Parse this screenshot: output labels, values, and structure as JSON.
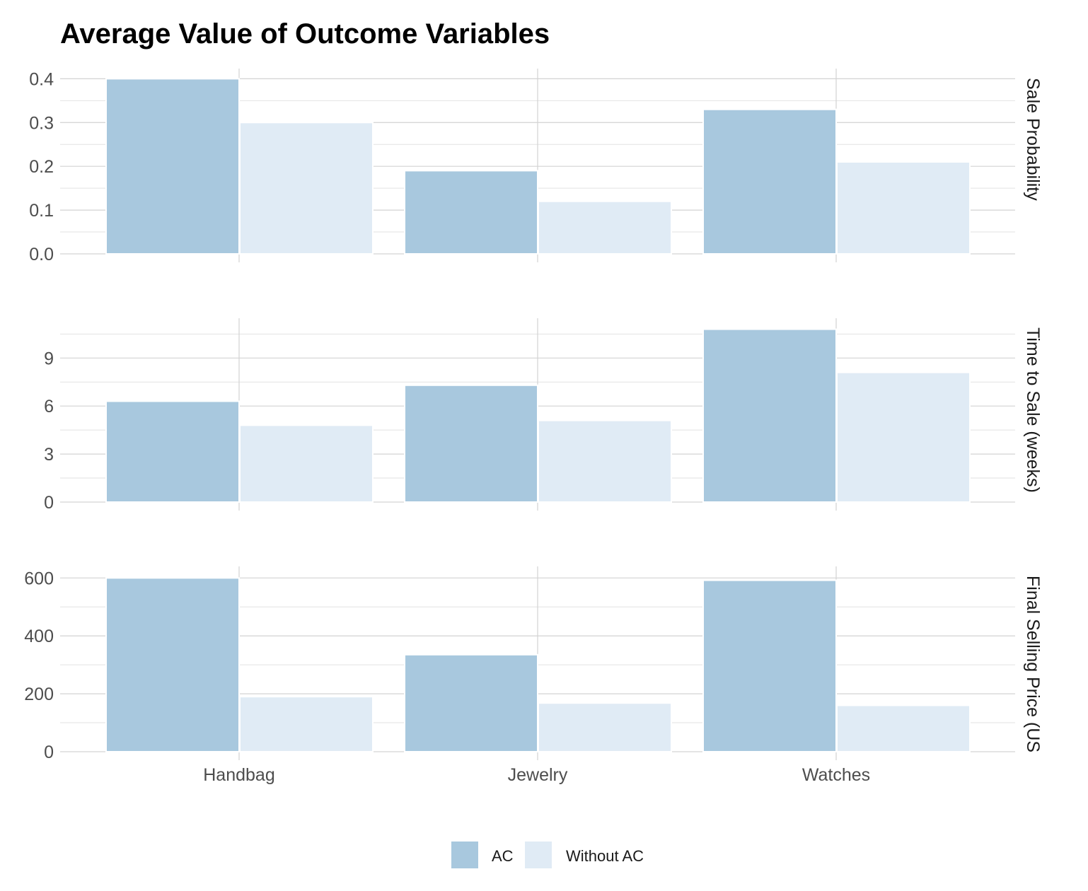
{
  "chart_data": {
    "type": "bar",
    "title": "Average Value of Outcome Variables",
    "categories": [
      "Handbag",
      "Jewelry",
      "Watches"
    ],
    "legend": {
      "position": "bottom",
      "entries": [
        "AC",
        "Without AC"
      ]
    },
    "colors": {
      "AC": "#a8c8de",
      "Without AC": "#e0ebf5"
    },
    "grid": true,
    "panels": [
      {
        "strip": "Sale Probability",
        "ylim": [
          0,
          0.42
        ],
        "yticks": [
          0.0,
          0.1,
          0.2,
          0.3,
          0.4
        ],
        "ytick_labels": [
          "0.0",
          "0.1",
          "0.2",
          "0.3",
          "0.4"
        ],
        "series": [
          {
            "name": "AC",
            "values": [
              0.4,
              0.19,
              0.33
            ]
          },
          {
            "name": "Without AC",
            "values": [
              0.3,
              0.12,
              0.21
            ]
          }
        ]
      },
      {
        "strip": "Time to Sale (weeks)",
        "ylim": [
          0,
          11.4
        ],
        "yticks": [
          0,
          3,
          6,
          9
        ],
        "ytick_labels": [
          "0",
          "3",
          "6",
          "9"
        ],
        "series": [
          {
            "name": "AC",
            "values": [
              6.3,
              7.3,
              10.8
            ]
          },
          {
            "name": "Without AC",
            "values": [
              4.8,
              5.1,
              8.1
            ]
          }
        ]
      },
      {
        "strip": "Final Selling Price (US",
        "ylim": [
          0,
          635
        ],
        "yticks": [
          0,
          200,
          400,
          600
        ],
        "ytick_labels": [
          "0",
          "200",
          "400",
          "600"
        ],
        "series": [
          {
            "name": "AC",
            "values": [
              600,
              335,
              592
            ]
          },
          {
            "name": "Without AC",
            "values": [
              190,
              168,
              160
            ]
          }
        ]
      }
    ]
  }
}
